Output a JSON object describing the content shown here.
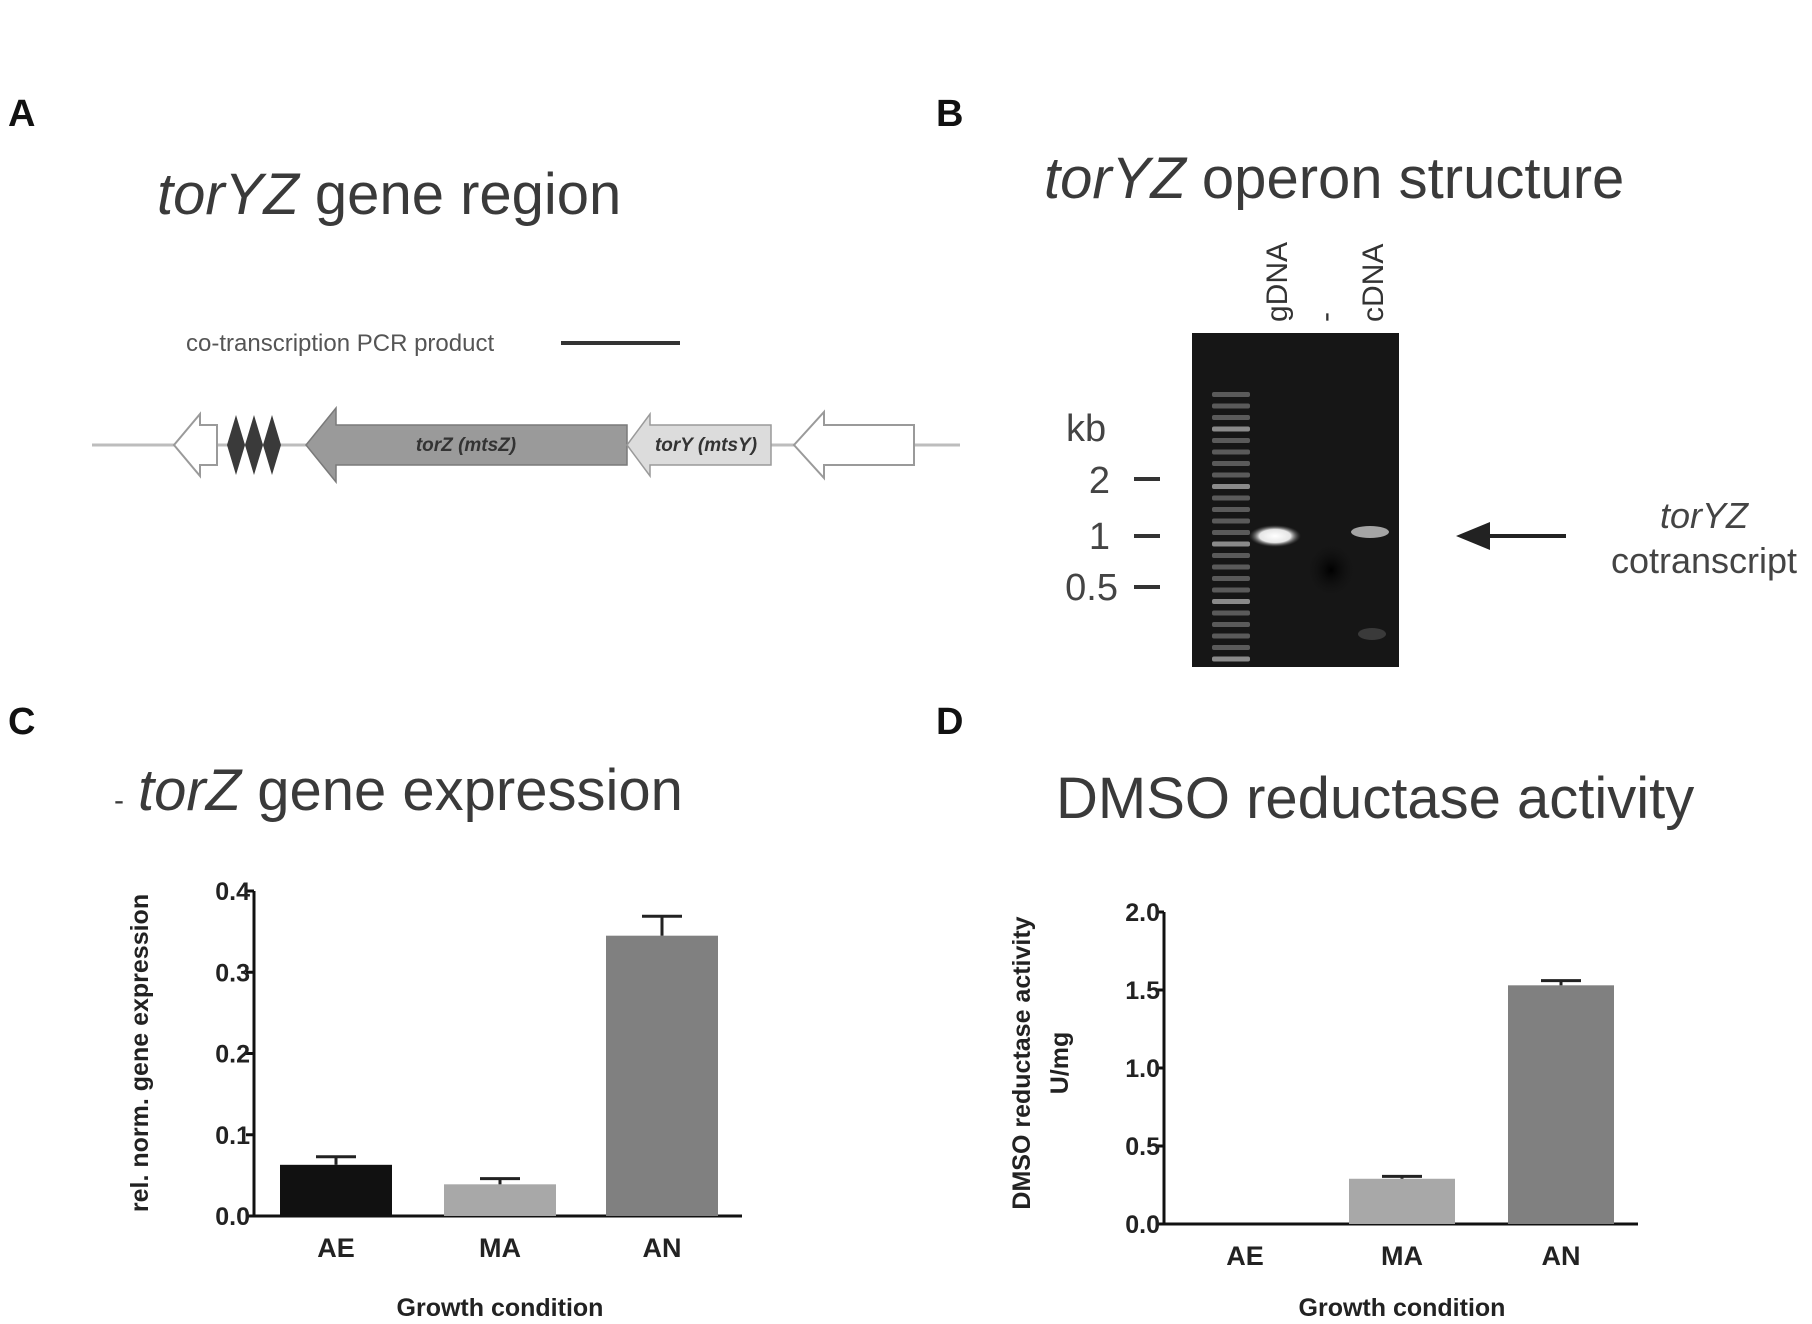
{
  "panels": {
    "a": {
      "label": "A",
      "title_italic": "torYZ",
      "title_rest": " gene region",
      "pcr_label": "co-transcription PCR product",
      "genes": [
        {
          "label": "torZ (mtsZ)",
          "color": "#9a9a9a"
        },
        {
          "label": "torY (mtsY)",
          "color": "#dcdcdc"
        }
      ]
    },
    "b": {
      "label": "B",
      "title_italic": "torYZ",
      "title_rest": " operon structure",
      "lanes": [
        "gDNA",
        "-",
        "cDNA"
      ],
      "kb_label": "kb",
      "markers": [
        "2",
        "1",
        "0.5"
      ],
      "annot_italic": "torYZ",
      "annot_line2": "cotranscript"
    }
  },
  "chart_data": [
    {
      "panel": "C",
      "type": "bar",
      "title_italic": "torZ",
      "title_rest": " gene expression",
      "title_mark": "-",
      "categories": [
        "AE",
        "MA",
        "AN"
      ],
      "values": [
        0.063,
        0.039,
        0.345
      ],
      "errors": [
        0.01,
        0.007,
        0.024
      ],
      "colors": [
        "#111111",
        "#a8a8a8",
        "#808080"
      ],
      "xlabel": "Growth condition",
      "ylabel": "rel. norm. gene expression",
      "ylim": [
        0,
        0.4
      ],
      "yticks": [
        "0.0",
        "0.1",
        "0.2",
        "0.3",
        "0.4"
      ]
    },
    {
      "panel": "D",
      "type": "bar",
      "title": "DMSO reductase activity",
      "categories": [
        "AE",
        "MA",
        "AN"
      ],
      "values": [
        0.0,
        0.29,
        1.53
      ],
      "errors": [
        0.0,
        0.015,
        0.03
      ],
      "colors": [
        "#111111",
        "#a8a8a8",
        "#808080"
      ],
      "xlabel": "Growth condition",
      "ylabel": "DMSO reductase activity",
      "ylabel2": "U/mg",
      "ylim": [
        0,
        2.0
      ],
      "yticks": [
        "0.0",
        "0.5",
        "1.0",
        "1.5",
        "2.0"
      ]
    }
  ]
}
